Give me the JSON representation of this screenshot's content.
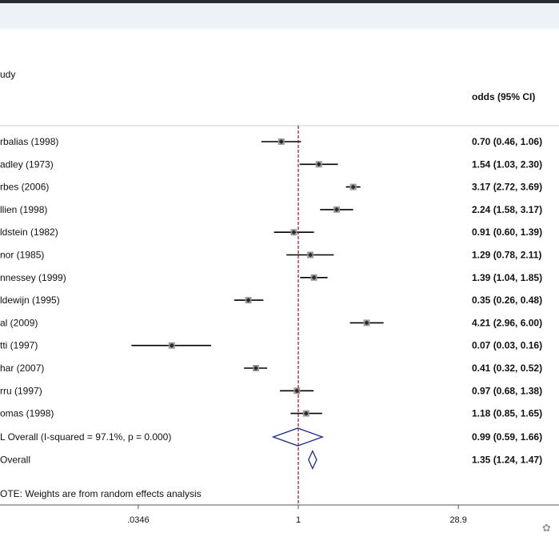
{
  "header": {
    "study_label": "udy",
    "ci_label": "odds (95% CI)"
  },
  "note": "OTE: Weights are from random effects analysis",
  "watermark_glyph": "✿",
  "colors": {
    "point": "#2a2a2a",
    "point_box": "#9a9a9a",
    "diamond": "#1a2a8c",
    "null_line": "#8b1a1a"
  },
  "chart_data": {
    "type": "forest",
    "title": "",
    "xscale": "log",
    "xticks": [
      {
        "value": 0.0346,
        "label": ".0346"
      },
      {
        "value": 1,
        "label": "1"
      },
      {
        "value": 28.9,
        "label": "28.9"
      }
    ],
    "null_value": 1,
    "studies": [
      {
        "label": "rbalias (1998)",
        "or": 0.7,
        "lo": 0.46,
        "hi": 1.06,
        "text": "0.70 (0.46, 1.06)"
      },
      {
        "label": "adley (1973)",
        "or": 1.54,
        "lo": 1.03,
        "hi": 2.3,
        "text": "1.54 (1.03, 2.30)"
      },
      {
        "label": "rbes (2006)",
        "or": 3.17,
        "lo": 2.72,
        "hi": 3.69,
        "text": "3.17 (2.72, 3.69)"
      },
      {
        "label": "llien (1998)",
        "or": 2.24,
        "lo": 1.58,
        "hi": 3.17,
        "text": "2.24 (1.58, 3.17)"
      },
      {
        "label": "ldstein (1982)",
        "or": 0.91,
        "lo": 0.6,
        "hi": 1.39,
        "text": "0.91 (0.60, 1.39)"
      },
      {
        "label": "nor (1985)",
        "or": 1.29,
        "lo": 0.78,
        "hi": 2.11,
        "text": "1.29 (0.78, 2.11)"
      },
      {
        "label": "nnessey (1999)",
        "or": 1.39,
        "lo": 1.04,
        "hi": 1.85,
        "text": "1.39 (1.04, 1.85)"
      },
      {
        "label": "ldewijn (1995)",
        "or": 0.35,
        "lo": 0.26,
        "hi": 0.48,
        "text": "0.35 (0.26, 0.48)"
      },
      {
        "label": "al (2009)",
        "or": 4.21,
        "lo": 2.96,
        "hi": 6.0,
        "text": "4.21 (2.96, 6.00)"
      },
      {
        "label": "tti (1997)",
        "or": 0.07,
        "lo": 0.03,
        "hi": 0.16,
        "text": "0.07 (0.03, 0.16)"
      },
      {
        "label": "har (2007)",
        "or": 0.41,
        "lo": 0.32,
        "hi": 0.52,
        "text": "0.41 (0.32, 0.52)"
      },
      {
        "label": "rru (1997)",
        "or": 0.97,
        "lo": 0.68,
        "hi": 1.38,
        "text": "0.97 (0.68, 1.38)"
      },
      {
        "label": "omas (1998)",
        "or": 1.18,
        "lo": 0.85,
        "hi": 1.65,
        "text": "1.18 (0.85, 1.65)"
      }
    ],
    "overall": [
      {
        "label": "L Overall  (I-squared = 97.1%, p = 0.000)",
        "or": 0.99,
        "lo": 0.59,
        "hi": 1.66,
        "text": "0.99 (0.59, 1.66)"
      },
      {
        "label": " Overall",
        "or": 1.35,
        "lo": 1.24,
        "hi": 1.47,
        "text": "1.35 (1.24, 1.47)"
      }
    ]
  }
}
